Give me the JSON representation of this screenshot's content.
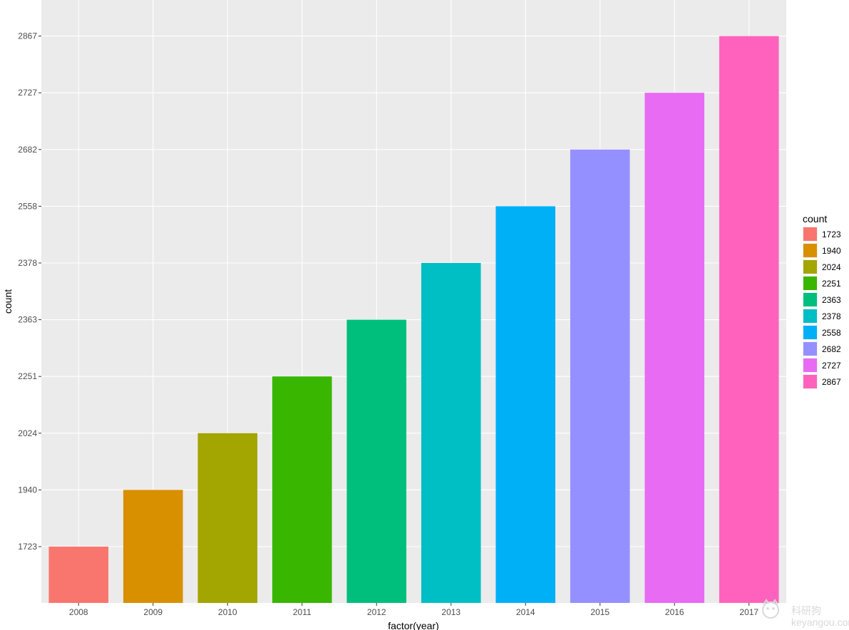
{
  "chart_data": {
    "type": "bar",
    "xlabel": "factor(year)",
    "ylabel": "count",
    "categories": [
      "2008",
      "2009",
      "2010",
      "2011",
      "2012",
      "2013",
      "2014",
      "2015",
      "2016",
      "2017"
    ],
    "values": [
      1723,
      1940,
      2024,
      2251,
      2363,
      2378,
      2558,
      2682,
      2727,
      2867
    ],
    "y_scale": "discrete",
    "y_ticks": [
      "1723",
      "1940",
      "2024",
      "2251",
      "2363",
      "2378",
      "2558",
      "2682",
      "2727",
      "2867"
    ],
    "colors": [
      "#F8766D",
      "#D89000",
      "#A3A500",
      "#39B600",
      "#00BF7D",
      "#00BFC4",
      "#00B0F6",
      "#9590FF",
      "#E76BF3",
      "#FF62BC"
    ],
    "legend": {
      "title": "count",
      "placement": "right",
      "entries": [
        "1723",
        "1940",
        "2024",
        "2251",
        "2363",
        "2378",
        "2558",
        "2682",
        "2727",
        "2867"
      ]
    },
    "grid": true,
    "panel_background": "#EBEBEB"
  },
  "watermark": {
    "text": "科研狗",
    "subtext": "keyangou.com"
  }
}
